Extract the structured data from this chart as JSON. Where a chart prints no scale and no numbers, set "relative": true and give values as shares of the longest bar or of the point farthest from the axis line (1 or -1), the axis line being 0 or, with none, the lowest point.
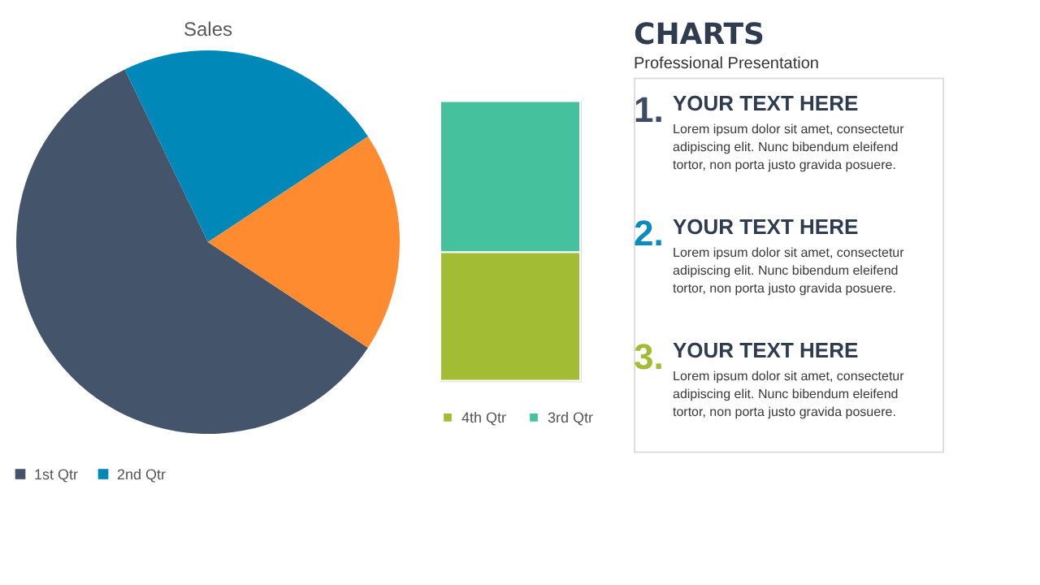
{
  "chart_data": [
    {
      "type": "pie",
      "title": "Sales",
      "categories": [
        "1st Qtr",
        "2nd Qtr",
        null
      ],
      "values": [
        58.57,
        22.86,
        18.57
      ],
      "colors": [
        "#44546a",
        "#0088b8",
        "#ff8b31"
      ],
      "legend": "bottom"
    },
    {
      "type": "bar",
      "stacked": true,
      "relative": true,
      "tick_labels": false,
      "legend": "bottom",
      "categories": [
        null
      ],
      "series": [
        {
          "name": "4th Qtr",
          "color": "#a2bd34",
          "values": [
            0.46
          ]
        },
        {
          "name": "3rd Qtr",
          "color": "#45c19d",
          "values": [
            0.54
          ]
        }
      ]
    },
    {
      "type": "other",
      "title": "CHARTS",
      "subtitle": "Professional Presentation",
      "annotations": [
        "1.",
        "YOUR TEXT HERE",
        "Lorem ipsum dolor sit amet, consectetur adipiscing elit. Nunc bibendum eleifend tortor, non porta justo gravida posuere.",
        "2.",
        "YOUR TEXT HERE",
        "Lorem ipsum dolor sit amet, consectetur adipiscing elit. Nunc bibendum eleifend tortor, non porta justo gravida posuere.",
        "3.",
        "YOUR TEXT HERE",
        "Lorem ipsum dolor sit amet, consectetur adipiscing elit. Nunc bibendum eleifend tortor, non porta justo gravida posuere."
      ]
    }
  ]
}
